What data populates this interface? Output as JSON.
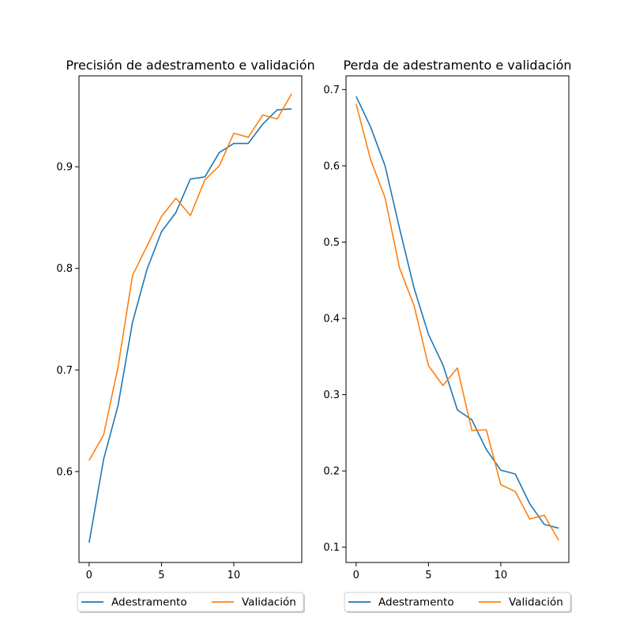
{
  "chart_data": [
    {
      "type": "line",
      "title": "Precisión de adestramento e validación",
      "xlim": [
        -0.7,
        14.7
      ],
      "ylim": [
        0.5105,
        0.9895
      ],
      "x_ticks": [
        0,
        5,
        10
      ],
      "y_ticks": [
        0.6,
        0.7,
        0.8,
        0.9
      ],
      "legend_location": "below",
      "series": [
        {
          "name": "Adestramento",
          "color": "#1f77b4",
          "x": [
            0,
            1,
            2,
            3,
            4,
            5,
            6,
            7,
            8,
            9,
            10,
            11,
            12,
            13,
            14
          ],
          "y": [
            0.53,
            0.612,
            0.665,
            0.747,
            0.799,
            0.836,
            0.855,
            0.888,
            0.89,
            0.914,
            0.923,
            0.923,
            0.942,
            0.956,
            0.957
          ]
        },
        {
          "name": "Validación",
          "color": "#ff7f0e",
          "x": [
            0,
            1,
            2,
            3,
            4,
            5,
            6,
            7,
            8,
            9,
            10,
            11,
            12,
            13,
            14
          ],
          "y": [
            0.611,
            0.636,
            0.703,
            0.793,
            0.822,
            0.851,
            0.869,
            0.852,
            0.887,
            0.901,
            0.933,
            0.929,
            0.951,
            0.947,
            0.972
          ]
        }
      ]
    },
    {
      "type": "line",
      "title": "Perda de adestramento e validación",
      "xlim": [
        -0.7,
        14.7
      ],
      "ylim": [
        0.08,
        0.718
      ],
      "x_ticks": [
        0,
        5,
        10
      ],
      "y_ticks": [
        0.1,
        0.2,
        0.3,
        0.4,
        0.5,
        0.6,
        0.7
      ],
      "legend_location": "below",
      "series": [
        {
          "name": "Adestramento",
          "color": "#1f77b4",
          "x": [
            0,
            1,
            2,
            3,
            4,
            5,
            6,
            7,
            8,
            9,
            10,
            11,
            12,
            13,
            14
          ],
          "y": [
            0.691,
            0.651,
            0.6,
            0.518,
            0.44,
            0.379,
            0.339,
            0.28,
            0.267,
            0.228,
            0.201,
            0.196,
            0.157,
            0.13,
            0.125
          ]
        },
        {
          "name": "Validación",
          "color": "#ff7f0e",
          "x": [
            0,
            1,
            2,
            3,
            4,
            5,
            6,
            7,
            8,
            9,
            10,
            11,
            12,
            13,
            14
          ],
          "y": [
            0.681,
            0.608,
            0.558,
            0.466,
            0.417,
            0.338,
            0.312,
            0.335,
            0.253,
            0.254,
            0.182,
            0.173,
            0.137,
            0.142,
            0.109
          ]
        }
      ]
    }
  ]
}
